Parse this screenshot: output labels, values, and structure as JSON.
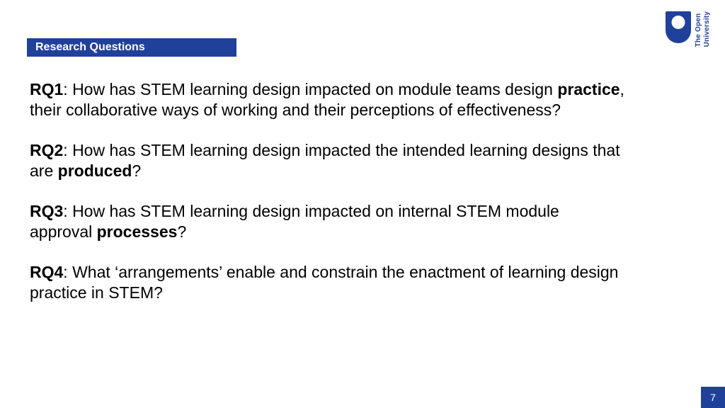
{
  "colors": {
    "brand_blue": "#20419a",
    "text": "#000000",
    "white": "#ffffff"
  },
  "header": {
    "title": "Research Questions"
  },
  "logo": {
    "line1": "The Open",
    "line2": "University"
  },
  "questions": [
    {
      "label": "RQ1",
      "before": ": How has STEM learning design impacted on module teams design ",
      "bold": "practice",
      "after": ", their collaborative ways of working and their perceptions of effectiveness?"
    },
    {
      "label": "RQ2",
      "before": ": How has STEM learning design impacted the intended learning designs that are ",
      "bold": "produced",
      "after": "?"
    },
    {
      "label": "RQ3",
      "before": ": How has STEM learning design impacted on internal STEM module approval ",
      "bold": "processes",
      "after": "?"
    },
    {
      "label": "RQ4",
      "before": ": What ‘arrangements’ enable and constrain the enactment of learning design practice in STEM?",
      "bold": "",
      "after": ""
    }
  ],
  "page_number": "7"
}
